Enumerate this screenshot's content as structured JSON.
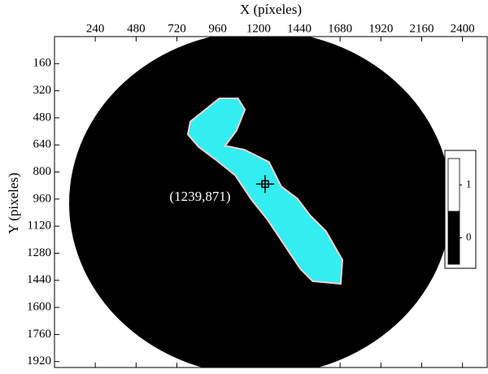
{
  "chart_data": {
    "type": "image",
    "x_label": "X (píxeles)",
    "y_label": "Y (pixeles)",
    "xlim": [
      0,
      2550
    ],
    "ylim": [
      0,
      1955
    ],
    "y_inverted": true,
    "xticks": [
      240,
      480,
      720,
      960,
      1200,
      1440,
      1680,
      1920,
      2160,
      2400
    ],
    "yticks": [
      160,
      320,
      480,
      640,
      800,
      960,
      1120,
      1280,
      1440,
      1600,
      1760,
      1920
    ],
    "point": {
      "x": 1239,
      "y": 871,
      "label": "(1239,871)"
    },
    "colorbar": {
      "ticks": [
        1,
        0
      ],
      "colors": [
        "#ffffff",
        "#000000"
      ]
    }
  }
}
